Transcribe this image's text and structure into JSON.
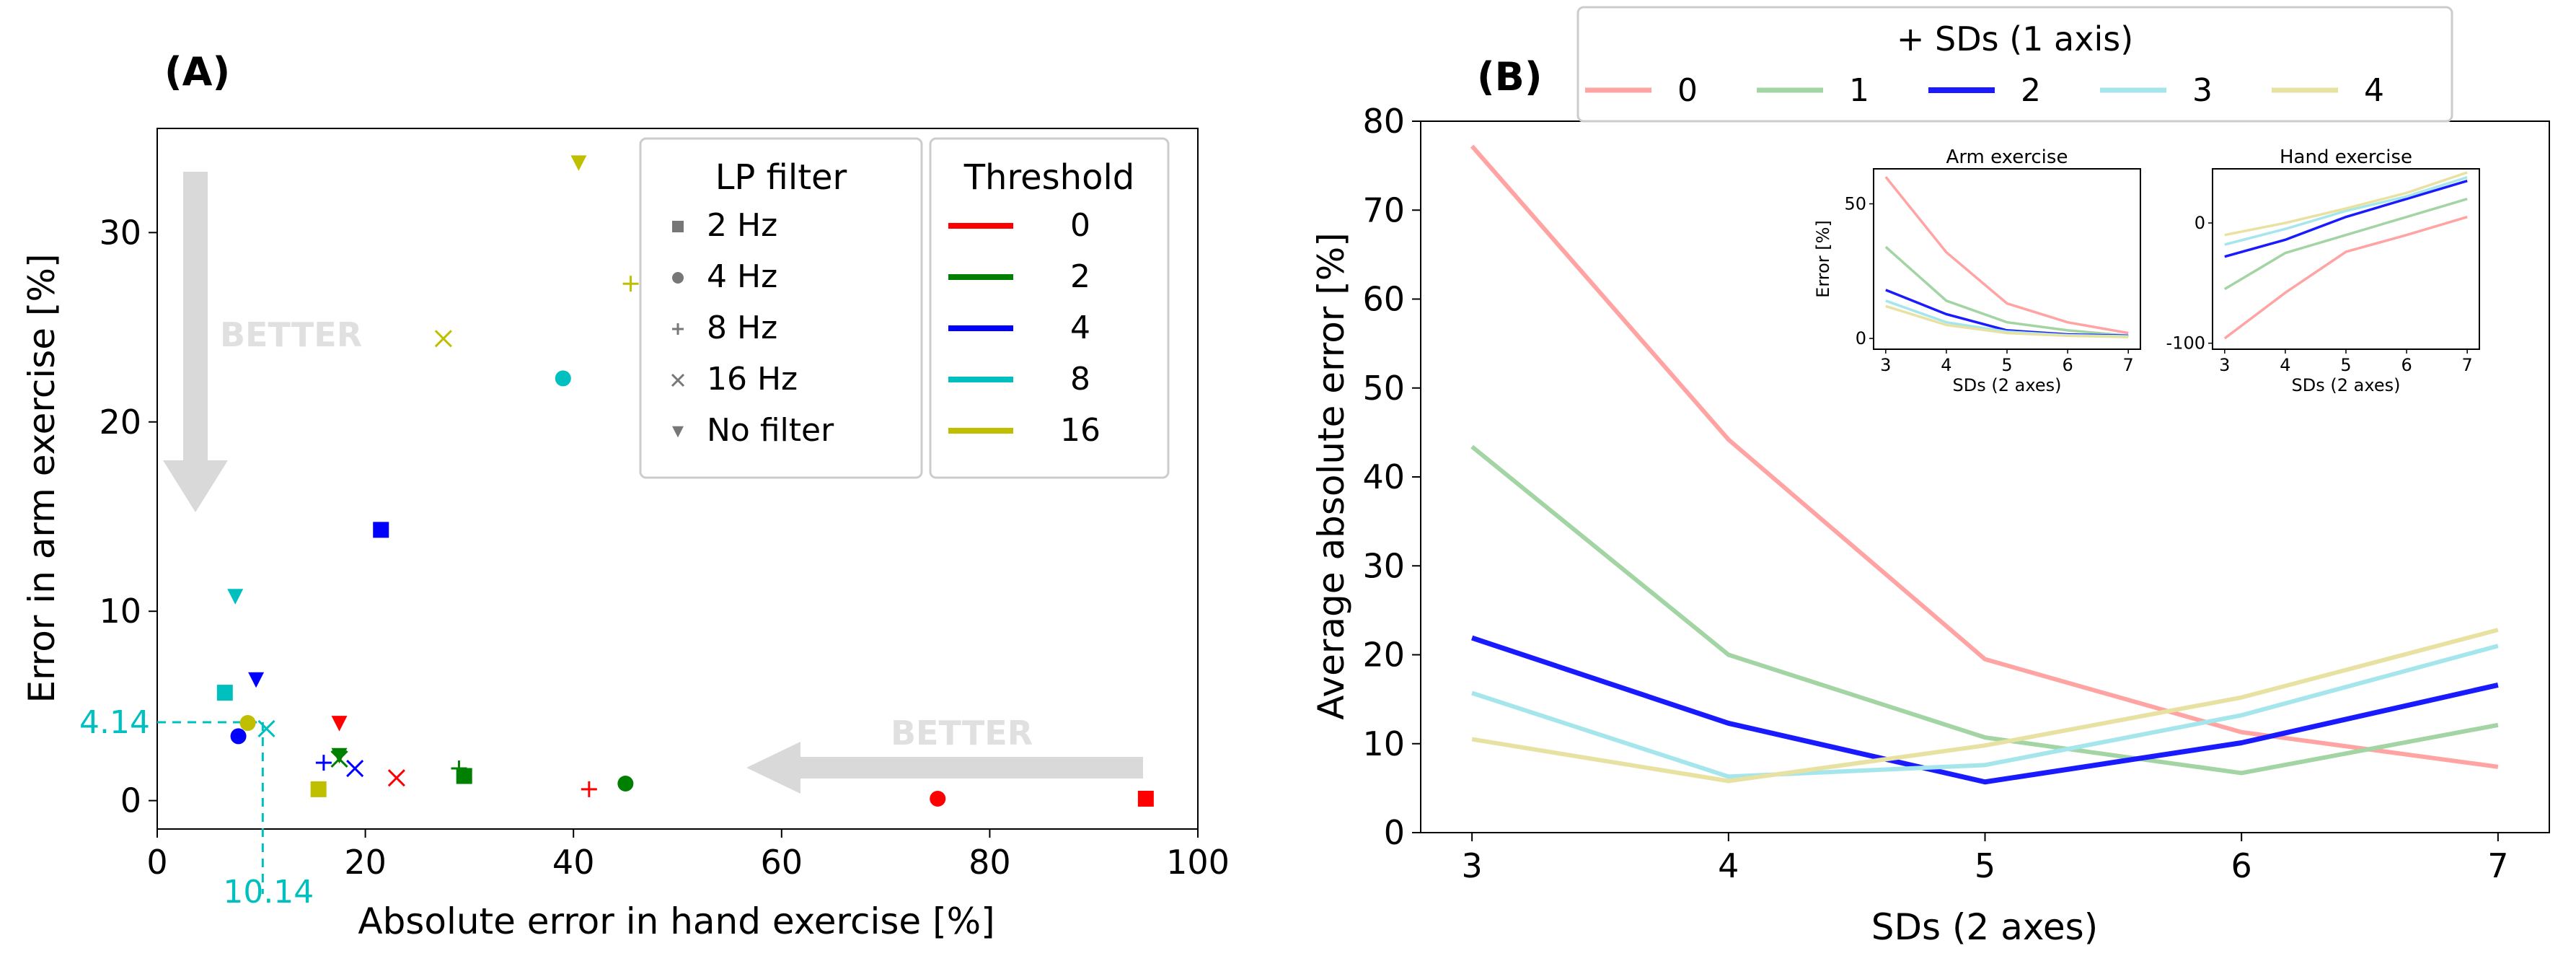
{
  "panel_a": {
    "label": "(A)",
    "chart_data": {
      "type": "scatter",
      "xlabel": "Absolute error in hand exercise [%]",
      "ylabel": "Error in arm exercise [%]",
      "xlim": [
        0,
        100
      ],
      "ylim": [
        -1.5,
        35.5
      ],
      "xticks": [
        0,
        20,
        40,
        60,
        80,
        100
      ],
      "yticks": [
        0,
        10,
        20,
        30
      ],
      "grid": false,
      "legends": [
        {
          "title": "LP filter",
          "placement": "top-right",
          "entries": [
            {
              "label": "2 Hz",
              "marker": "square"
            },
            {
              "label": "4 Hz",
              "marker": "circle"
            },
            {
              "label": "8 Hz",
              "marker": "plus"
            },
            {
              "label": "16 Hz",
              "marker": "x"
            },
            {
              "label": "No filter",
              "marker": "triangle-down"
            }
          ]
        },
        {
          "title": "Threshold",
          "placement": "top-right",
          "entries": [
            {
              "label": "0",
              "color": "#ff0000"
            },
            {
              "label": "2",
              "color": "#008000"
            },
            {
              "label": "4",
              "color": "#0000ff"
            },
            {
              "label": "8",
              "color": "#00bfbf"
            },
            {
              "label": "16",
              "color": "#bfbf00"
            }
          ]
        }
      ],
      "points": [
        {
          "x": 95,
          "y": 0.1,
          "marker": "square",
          "threshold": "0"
        },
        {
          "x": 75,
          "y": 0.1,
          "marker": "circle",
          "threshold": "0"
        },
        {
          "x": 41.5,
          "y": 0.6,
          "marker": "plus",
          "threshold": "0"
        },
        {
          "x": 23,
          "y": 1.2,
          "marker": "x",
          "threshold": "0"
        },
        {
          "x": 17.5,
          "y": 4.1,
          "marker": "triangle-down",
          "threshold": "0"
        },
        {
          "x": 29.5,
          "y": 1.3,
          "marker": "square",
          "threshold": "2"
        },
        {
          "x": 45,
          "y": 0.9,
          "marker": "circle",
          "threshold": "2"
        },
        {
          "x": 29,
          "y": 1.7,
          "marker": "plus",
          "threshold": "2"
        },
        {
          "x": 17.5,
          "y": 2.2,
          "marker": "x",
          "threshold": "2"
        },
        {
          "x": 17.5,
          "y": 2.4,
          "marker": "triangle-down",
          "threshold": "2"
        },
        {
          "x": 21.5,
          "y": 14.3,
          "marker": "square",
          "threshold": "4"
        },
        {
          "x": 7.8,
          "y": 3.4,
          "marker": "circle",
          "threshold": "4"
        },
        {
          "x": 16,
          "y": 2.0,
          "marker": "plus",
          "threshold": "4"
        },
        {
          "x": 19,
          "y": 1.7,
          "marker": "x",
          "threshold": "4"
        },
        {
          "x": 9.5,
          "y": 6.4,
          "marker": "triangle-down",
          "threshold": "4"
        },
        {
          "x": 6.5,
          "y": 5.7,
          "marker": "square",
          "threshold": "8"
        },
        {
          "x": 39,
          "y": 22.3,
          "marker": "circle",
          "threshold": "8"
        },
        {
          "x": 10.5,
          "y": 3.8,
          "marker": "x",
          "threshold": "8"
        },
        {
          "x": 7.5,
          "y": 10.8,
          "marker": "triangle-down",
          "threshold": "8"
        },
        {
          "x": 15.5,
          "y": 0.6,
          "marker": "square",
          "threshold": "16"
        },
        {
          "x": 8.7,
          "y": 4.1,
          "marker": "circle",
          "threshold": "16"
        },
        {
          "x": 45.5,
          "y": 27.3,
          "marker": "plus",
          "threshold": "16"
        },
        {
          "x": 27.5,
          "y": 24.4,
          "marker": "x",
          "threshold": "16"
        },
        {
          "x": 40.5,
          "y": 33.7,
          "marker": "triangle-down",
          "threshold": "16"
        }
      ],
      "reference": {
        "x": 10.14,
        "y": 4.14,
        "x_label": "10.14",
        "y_label": "4.14",
        "color": "#00bfbf"
      },
      "annotations": [
        {
          "text": "BETTER",
          "direction": "down"
        },
        {
          "text": "BETTER",
          "direction": "left"
        }
      ]
    }
  },
  "panel_b": {
    "label": "(B)",
    "chart_data": {
      "type": "line",
      "xlabel": "SDs (2 axes)",
      "ylabel": "Average absolute error [%]",
      "x": [
        3,
        4,
        5,
        6,
        7
      ],
      "xlim": [
        2.8,
        7.2
      ],
      "ylim": [
        0,
        80
      ],
      "xticks": [
        3,
        4,
        5,
        6,
        7
      ],
      "yticks": [
        0,
        10,
        20,
        30,
        40,
        50,
        60,
        70,
        80
      ],
      "grid": false,
      "legend": {
        "title": "+ SDs (1 axis)",
        "placement": "top",
        "entries": [
          "0",
          "1",
          "2",
          "3",
          "4"
        ]
      },
      "series": [
        {
          "name": "0",
          "color": "#ffa3a3",
          "width": 6,
          "values": [
            77.2,
            44.2,
            19.5,
            11.3,
            7.4
          ]
        },
        {
          "name": "1",
          "color": "#a3d4a3",
          "width": 6,
          "values": [
            43.4,
            20.0,
            10.7,
            6.7,
            12.1
          ]
        },
        {
          "name": "2",
          "color": "#1a1aff",
          "width": 7,
          "values": [
            21.9,
            12.3,
            5.7,
            10.1,
            16.6
          ]
        },
        {
          "name": "3",
          "color": "#a5e6ec",
          "width": 6,
          "values": [
            15.7,
            6.3,
            7.6,
            13.2,
            21.0
          ]
        },
        {
          "name": "4",
          "color": "#e8e2a2",
          "width": 6,
          "values": [
            10.5,
            5.8,
            9.8,
            15.2,
            22.8
          ]
        }
      ],
      "insets": [
        {
          "title": "Arm exercise",
          "xlabel": "SDs (2 axes)",
          "ylabel": "Error [%]",
          "x": [
            3,
            4,
            5,
            6,
            7
          ],
          "xticks": [
            3,
            4,
            5,
            6,
            7
          ],
          "yticks": [
            0,
            50
          ],
          "ylim": [
            -4,
            63
          ],
          "series": [
            {
              "name": "0",
              "values": [
                60,
                32,
                13,
                6,
                2
              ]
            },
            {
              "name": "1",
              "values": [
                34,
                14,
                6,
                3,
                1
              ]
            },
            {
              "name": "2",
              "values": [
                18,
                9,
                3,
                1.5,
                1
              ]
            },
            {
              "name": "3",
              "values": [
                14,
                6,
                2.5,
                1.2,
                0.8
              ]
            },
            {
              "name": "4",
              "values": [
                12,
                5,
                2,
                1,
                0.5
              ]
            }
          ]
        },
        {
          "title": "Hand exercise",
          "xlabel": "SDs (2 axes)",
          "ylabel": "",
          "x": [
            3,
            4,
            5,
            6,
            7
          ],
          "xticks": [
            3,
            4,
            5,
            6,
            7
          ],
          "yticks": [
            -100,
            0
          ],
          "ylim": [
            -105,
            45
          ],
          "series": [
            {
              "name": "0",
              "values": [
                -96,
                -58,
                -24,
                -10,
                5
              ]
            },
            {
              "name": "1",
              "values": [
                -55,
                -25,
                -10,
                5,
                20
              ]
            },
            {
              "name": "2",
              "values": [
                -28,
                -14,
                5,
                20,
                35
              ]
            },
            {
              "name": "3",
              "values": [
                -18,
                -5,
                10,
                22,
                38
              ]
            },
            {
              "name": "4",
              "values": [
                -10,
                0,
                12,
                25,
                42
              ]
            }
          ]
        }
      ]
    }
  }
}
